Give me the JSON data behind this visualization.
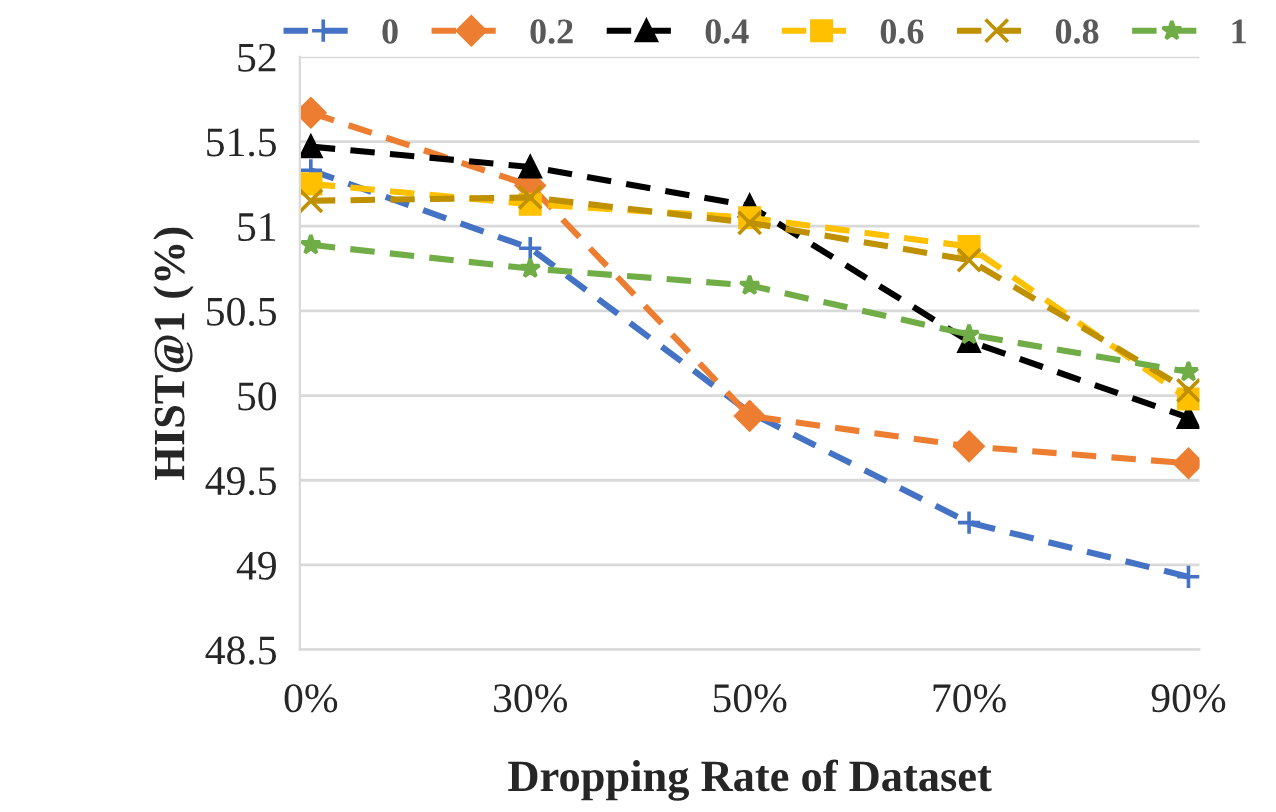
{
  "chart_data": {
    "type": "line",
    "xlabel": "Dropping Rate of Dataset",
    "ylabel": "HIST@1 (%)",
    "categories": [
      "0%",
      "30%",
      "50%",
      "70%",
      "90%"
    ],
    "ylim": [
      48.5,
      52
    ],
    "yticks": [
      48.5,
      49,
      49.5,
      50,
      50.5,
      51,
      51.5,
      52
    ],
    "grid": "y",
    "legend": "top",
    "line_style": "dashed",
    "series": [
      {
        "name": "0",
        "color": "#4472c4",
        "marker": "cross",
        "values": [
          51.33,
          50.87,
          49.9,
          49.25,
          48.93
        ]
      },
      {
        "name": "0.2",
        "color": "#ed7d31",
        "marker": "diamond",
        "values": [
          51.67,
          51.24,
          49.88,
          49.7,
          49.6
        ]
      },
      {
        "name": "0.4",
        "color": "#000000",
        "marker": "triangle",
        "values": [
          51.47,
          51.35,
          51.12,
          50.32,
          49.87
        ]
      },
      {
        "name": "0.6",
        "color": "#ffc000",
        "marker": "square",
        "values": [
          51.25,
          51.13,
          51.05,
          50.88,
          49.98
        ]
      },
      {
        "name": "0.8",
        "color": "#bf9000",
        "marker": "x",
        "values": [
          51.15,
          51.17,
          51.02,
          50.8,
          50.03
        ]
      },
      {
        "name": "1",
        "color": "#70ad47",
        "marker": "star",
        "values": [
          50.89,
          50.75,
          50.65,
          50.36,
          50.14
        ]
      }
    ]
  }
}
